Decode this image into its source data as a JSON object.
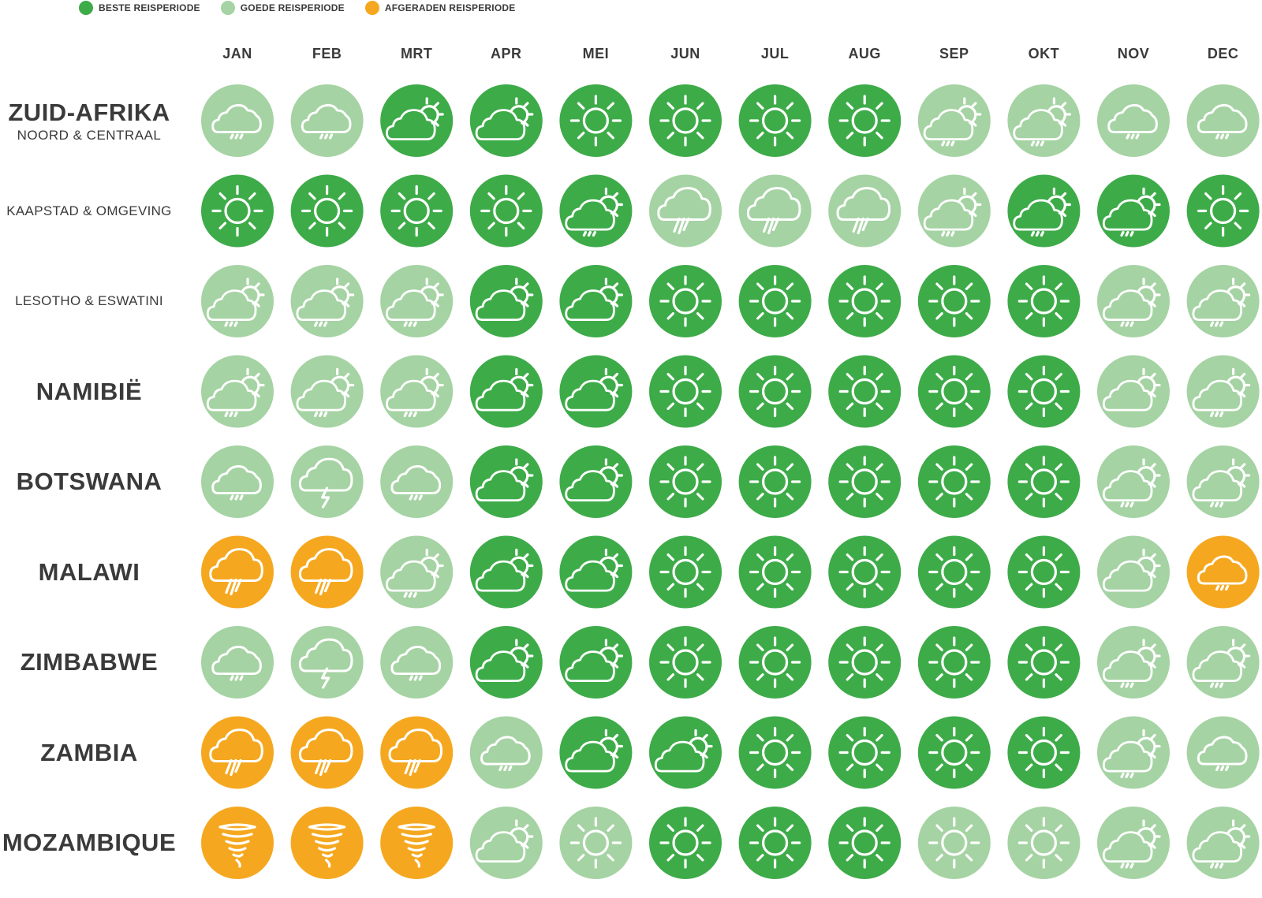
{
  "colors": {
    "beste": "#3eab49",
    "goede": "#a5d3a3",
    "afgeraden": "#f5a81f",
    "icon": "#ffffff"
  },
  "legend": [
    {
      "label": "BESTE REISPERIODE",
      "rating": "beste"
    },
    {
      "label": "GOEDE REISPERIODE",
      "rating": "goede"
    },
    {
      "label": "AFGERADEN REISPERIODE",
      "rating": "afgeraden"
    }
  ],
  "chart_data": {
    "type": "table",
    "months": [
      "JAN",
      "FEB",
      "MRT",
      "APR",
      "MEI",
      "JUN",
      "JUL",
      "AUG",
      "SEP",
      "OKT",
      "NOV",
      "DEC"
    ],
    "regions": [
      {
        "name": "ZUID-AFRIKA",
        "sub": "NOORD & CENTRAAL",
        "style": "big",
        "ratings": [
          "goede",
          "goede",
          "beste",
          "beste",
          "beste",
          "beste",
          "beste",
          "beste",
          "goede",
          "goede",
          "goede",
          "goede"
        ],
        "icons": [
          "cloud-rain",
          "cloud-rain",
          "sun-cloud",
          "sun-cloud",
          "sun",
          "sun",
          "sun",
          "sun",
          "sun-cloud-rain",
          "sun-cloud-rain",
          "cloud-rain",
          "cloud-rain"
        ]
      },
      {
        "name": "KAAPSTAD & OMGEVING",
        "sub": "",
        "style": "small",
        "ratings": [
          "beste",
          "beste",
          "beste",
          "beste",
          "beste",
          "goede",
          "goede",
          "goede",
          "goede",
          "beste",
          "beste",
          "beste"
        ],
        "icons": [
          "sun",
          "sun",
          "sun",
          "sun",
          "sun-cloud-rain",
          "cloud-heavy-rain",
          "cloud-heavy-rain",
          "cloud-heavy-rain",
          "sun-cloud-rain",
          "sun-cloud-rain",
          "sun-cloud-rain",
          "sun"
        ]
      },
      {
        "name": "LESOTHO & ESWATINI",
        "sub": "",
        "style": "small",
        "ratings": [
          "goede",
          "goede",
          "goede",
          "beste",
          "beste",
          "beste",
          "beste",
          "beste",
          "beste",
          "beste",
          "goede",
          "goede"
        ],
        "icons": [
          "sun-cloud-rain",
          "sun-cloud-rain",
          "sun-cloud-rain",
          "sun-cloud",
          "sun-cloud",
          "sun",
          "sun",
          "sun",
          "sun",
          "sun",
          "sun-cloud-rain",
          "sun-cloud-rain"
        ]
      },
      {
        "name": "NAMIBIË",
        "sub": "",
        "style": "big",
        "ratings": [
          "goede",
          "goede",
          "goede",
          "beste",
          "beste",
          "beste",
          "beste",
          "beste",
          "beste",
          "beste",
          "goede",
          "goede"
        ],
        "icons": [
          "sun-cloud-rain",
          "sun-cloud-rain",
          "sun-cloud-rain",
          "sun-cloud",
          "sun-cloud",
          "sun",
          "sun",
          "sun",
          "sun",
          "sun",
          "sun-cloud",
          "sun-cloud-rain"
        ]
      },
      {
        "name": "BOTSWANA",
        "sub": "",
        "style": "big",
        "ratings": [
          "goede",
          "goede",
          "goede",
          "beste",
          "beste",
          "beste",
          "beste",
          "beste",
          "beste",
          "beste",
          "goede",
          "goede"
        ],
        "icons": [
          "cloud-rain",
          "cloud-lightning",
          "cloud-rain",
          "sun-cloud",
          "sun-cloud",
          "sun",
          "sun",
          "sun",
          "sun",
          "sun",
          "sun-cloud-rain",
          "sun-cloud-rain"
        ]
      },
      {
        "name": "MALAWI",
        "sub": "",
        "style": "big",
        "ratings": [
          "afgeraden",
          "afgeraden",
          "goede",
          "beste",
          "beste",
          "beste",
          "beste",
          "beste",
          "beste",
          "beste",
          "goede",
          "afgeraden"
        ],
        "icons": [
          "cloud-heavy-rain",
          "cloud-heavy-rain",
          "sun-cloud-rain",
          "sun-cloud",
          "sun-cloud",
          "sun",
          "sun",
          "sun",
          "sun",
          "sun",
          "sun-cloud",
          "cloud-rain"
        ]
      },
      {
        "name": "ZIMBABWE",
        "sub": "",
        "style": "big",
        "ratings": [
          "goede",
          "goede",
          "goede",
          "beste",
          "beste",
          "beste",
          "beste",
          "beste",
          "beste",
          "beste",
          "goede",
          "goede"
        ],
        "icons": [
          "cloud-rain",
          "cloud-lightning",
          "cloud-rain",
          "sun-cloud",
          "sun-cloud",
          "sun",
          "sun",
          "sun",
          "sun",
          "sun",
          "sun-cloud-rain",
          "sun-cloud-rain"
        ]
      },
      {
        "name": "ZAMBIA",
        "sub": "",
        "style": "big",
        "ratings": [
          "afgeraden",
          "afgeraden",
          "afgeraden",
          "goede",
          "beste",
          "beste",
          "beste",
          "beste",
          "beste",
          "beste",
          "goede",
          "goede"
        ],
        "icons": [
          "cloud-heavy-rain",
          "cloud-heavy-rain",
          "cloud-heavy-rain",
          "cloud-rain",
          "sun-cloud",
          "sun-cloud",
          "sun",
          "sun",
          "sun",
          "sun",
          "sun-cloud-rain",
          "cloud-rain"
        ]
      },
      {
        "name": "MOZAMBIQUE",
        "sub": "",
        "style": "big",
        "ratings": [
          "afgeraden",
          "afgeraden",
          "afgeraden",
          "goede",
          "goede",
          "beste",
          "beste",
          "beste",
          "goede",
          "goede",
          "goede",
          "goede"
        ],
        "icons": [
          "tornado",
          "tornado",
          "tornado",
          "sun-cloud",
          "sun",
          "sun",
          "sun",
          "sun",
          "sun",
          "sun",
          "sun-cloud-rain",
          "sun-cloud-rain"
        ]
      }
    ]
  }
}
